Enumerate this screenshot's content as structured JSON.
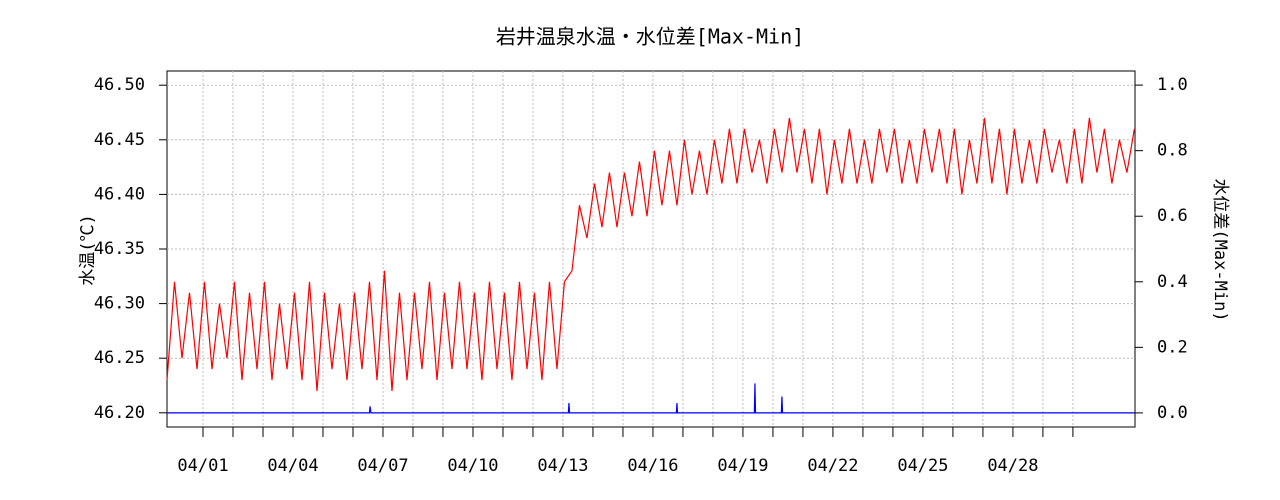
{
  "chart_data": {
    "type": "line",
    "title": "岩井温泉水温・水位差[Max-Min]",
    "ylabel": "水温(℃)",
    "y2label": "水位差(Max-Min)",
    "xlim": [
      -0.2,
      32.07
    ],
    "ylim": [
      46.187,
      46.513
    ],
    "y2lim": [
      -0.043,
      1.043
    ],
    "grid": true,
    "xticks": [
      {
        "value": 1,
        "label": "04/01"
      },
      {
        "value": 4,
        "label": "04/04"
      },
      {
        "value": 7,
        "label": "04/07"
      },
      {
        "value": 10,
        "label": "04/10"
      },
      {
        "value": 13,
        "label": "04/13"
      },
      {
        "value": 16,
        "label": "04/16"
      },
      {
        "value": 19,
        "label": "04/19"
      },
      {
        "value": 22,
        "label": "04/22"
      },
      {
        "value": 25,
        "label": "04/25"
      },
      {
        "value": 28,
        "label": "04/28"
      }
    ],
    "xminor_ticks": [
      1,
      2,
      3,
      4,
      5,
      6,
      7,
      8,
      9,
      10,
      11,
      12,
      13,
      14,
      15,
      16,
      17,
      18,
      19,
      20,
      21,
      22,
      23,
      24,
      25,
      26,
      27,
      28,
      29,
      30
    ],
    "yticks": [
      {
        "value": 46.2,
        "label": "46.20"
      },
      {
        "value": 46.25,
        "label": "46.25"
      },
      {
        "value": 46.3,
        "label": "46.30"
      },
      {
        "value": 46.35,
        "label": "46.35"
      },
      {
        "value": 46.4,
        "label": "46.40"
      },
      {
        "value": 46.45,
        "label": "46.45"
      },
      {
        "value": 46.5,
        "label": "46.50"
      }
    ],
    "y2ticks": [
      {
        "value": 0,
        "label": "0.0"
      },
      {
        "value": 0.2,
        "label": "0.2"
      },
      {
        "value": 0.4,
        "label": "0.4"
      },
      {
        "value": 0.6,
        "label": "0.6"
      },
      {
        "value": 0.8,
        "label": "0.8"
      },
      {
        "value": 1,
        "label": "1.0"
      }
    ],
    "series": [
      {
        "color": "#ff0000",
        "x": [
          -0.2,
          0.05,
          0.3,
          0.55,
          0.8,
          1.05,
          1.3,
          1.55,
          1.8,
          2.05,
          2.3,
          2.55,
          2.8,
          3.05,
          3.3,
          3.55,
          3.8,
          4.05,
          4.3,
          4.55,
          4.8,
          5.05,
          5.3,
          5.55,
          5.8,
          6.05,
          6.3,
          6.55,
          6.8,
          7.05,
          7.3,
          7.55,
          7.8,
          8.05,
          8.3,
          8.55,
          8.8,
          9.05,
          9.3,
          9.55,
          9.8,
          10.05,
          10.3,
          10.55,
          10.8,
          11.05,
          11.3,
          11.55,
          11.8,
          12.05,
          12.3,
          12.55,
          12.8,
          13.05,
          13.3,
          13.55,
          13.8,
          14.05,
          14.3,
          14.55,
          14.8,
          15.05,
          15.3,
          15.55,
          15.8,
          16.05,
          16.3,
          16.55,
          16.8,
          17.05,
          17.3,
          17.55,
          17.8,
          18.05,
          18.3,
          18.55,
          18.8,
          19.05,
          19.3,
          19.55,
          19.8,
          20.05,
          20.3,
          20.55,
          20.8,
          21.05,
          21.3,
          21.55,
          21.8,
          22.05,
          22.3,
          22.55,
          22.8,
          23.05,
          23.3,
          23.55,
          23.8,
          24.05,
          24.3,
          24.55,
          24.8,
          25.05,
          25.3,
          25.55,
          25.8,
          26.05,
          26.3,
          26.55,
          26.8,
          27.05,
          27.3,
          27.55,
          27.8,
          28.05,
          28.3,
          28.55,
          28.8,
          29.05,
          29.3,
          29.55,
          29.8,
          30.05,
          30.3,
          30.55,
          30.8,
          31.05,
          31.3,
          31.55,
          31.8,
          32.05
        ],
        "values": [
          46.23,
          46.32,
          46.25,
          46.31,
          46.24,
          46.32,
          46.24,
          46.3,
          46.25,
          46.32,
          46.23,
          46.31,
          46.24,
          46.32,
          46.23,
          46.3,
          46.24,
          46.31,
          46.23,
          46.32,
          46.22,
          46.31,
          46.24,
          46.3,
          46.23,
          46.31,
          46.24,
          46.32,
          46.23,
          46.33,
          46.22,
          46.31,
          46.23,
          46.31,
          46.24,
          46.32,
          46.23,
          46.31,
          46.24,
          46.32,
          46.24,
          46.31,
          46.23,
          46.32,
          46.24,
          46.31,
          46.23,
          46.32,
          46.24,
          46.31,
          46.23,
          46.32,
          46.24,
          46.32,
          46.33,
          46.39,
          46.36,
          46.41,
          46.37,
          46.42,
          46.37,
          46.42,
          46.38,
          46.43,
          46.38,
          46.44,
          46.39,
          46.44,
          46.39,
          46.45,
          46.4,
          46.44,
          46.4,
          46.45,
          46.41,
          46.46,
          46.41,
          46.46,
          46.42,
          46.45,
          46.41,
          46.46,
          46.42,
          46.47,
          46.42,
          46.46,
          46.41,
          46.46,
          46.4,
          46.45,
          46.41,
          46.46,
          46.41,
          46.45,
          46.41,
          46.46,
          46.42,
          46.46,
          46.41,
          46.45,
          46.41,
          46.46,
          46.42,
          46.46,
          46.41,
          46.46,
          46.4,
          46.45,
          46.41,
          46.47,
          46.41,
          46.46,
          46.4,
          46.46,
          46.41,
          46.45,
          46.41,
          46.46,
          46.42,
          46.45,
          46.41,
          46.46,
          46.41,
          46.47,
          46.42,
          46.46,
          46.41,
          46.45,
          46.42,
          46.46
        ]
      },
      {
        "color": "#0000ff",
        "axis": "y2",
        "x": [
          -0.2,
          6.55,
          6.57,
          6.6,
          13.18,
          13.2,
          13.22,
          16.78,
          16.8,
          16.82,
          19.38,
          19.4,
          19.42,
          20.28,
          20.3,
          20.32,
          32.05
        ],
        "values": [
          0,
          0,
          0.02,
          0,
          0,
          0.03,
          0,
          0,
          0.03,
          0,
          0,
          0.09,
          0,
          0,
          0.05,
          0,
          0
        ]
      }
    ]
  }
}
